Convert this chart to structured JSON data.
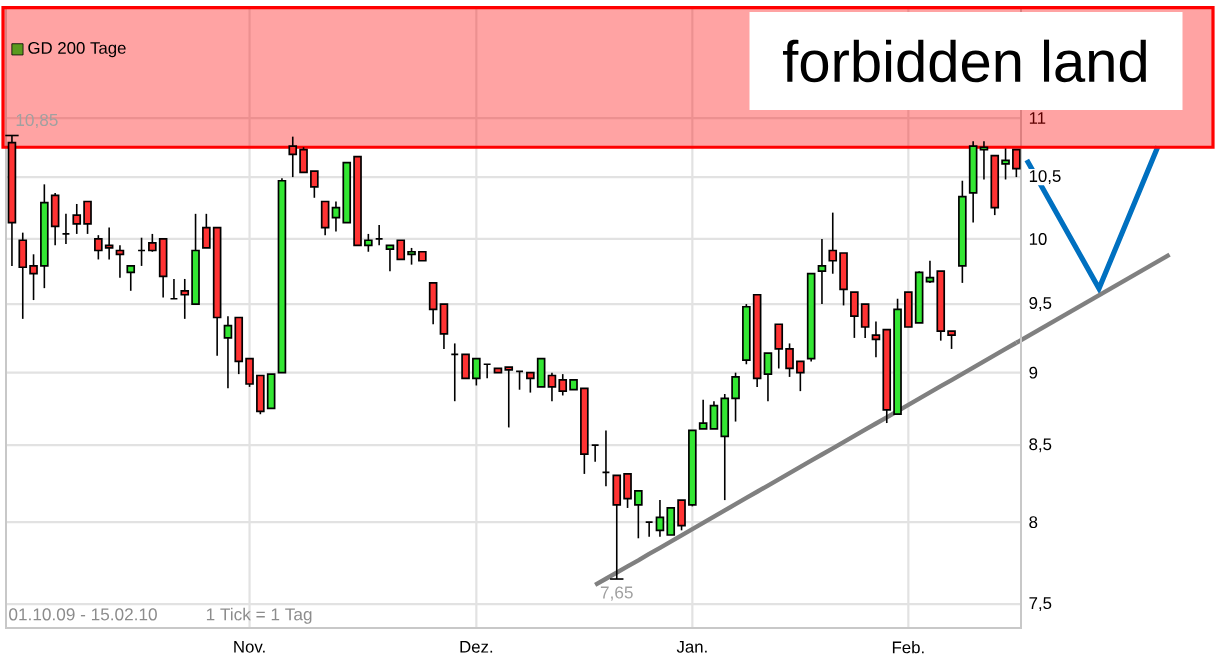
{
  "chart_data": {
    "type": "candlestick",
    "categories": [
      null,
      null,
      null,
      null,
      null,
      null,
      null,
      null,
      null,
      null,
      null,
      null,
      null,
      null,
      null,
      null,
      null,
      null,
      null,
      null,
      null,
      null,
      "Nov.",
      null,
      null,
      null,
      null,
      null,
      null,
      null,
      null,
      null,
      null,
      null,
      null,
      null,
      null,
      null,
      null,
      null,
      null,
      null,
      null,
      "Dez.",
      null,
      null,
      null,
      null,
      null,
      null,
      null,
      null,
      null,
      null,
      null,
      null,
      null,
      null,
      null,
      null,
      null,
      null,
      null,
      "Jan.",
      null,
      null,
      null,
      null,
      null,
      null,
      null,
      null,
      null,
      null,
      null,
      null,
      null,
      null,
      null,
      null,
      null,
      null,
      null,
      "Feb.",
      null,
      null,
      null,
      null,
      null,
      null,
      null,
      null,
      null,
      null
    ],
    "ohlc": [
      [
        10.79,
        10.85,
        9.79,
        10.13
      ],
      [
        9.99,
        10.05,
        9.39,
        9.78
      ],
      [
        9.79,
        9.88,
        9.53,
        9.73
      ],
      [
        9.79,
        10.44,
        9.62,
        10.29
      ],
      [
        10.35,
        10.37,
        9.95,
        10.1
      ],
      [
        10.04,
        10.2,
        9.96,
        10.04
      ],
      [
        10.19,
        10.28,
        10.04,
        10.12
      ],
      [
        10.3,
        10.3,
        10.04,
        10.12
      ],
      [
        10.0,
        10.03,
        9.84,
        9.91
      ],
      [
        9.95,
        10.09,
        9.84,
        9.93
      ],
      [
        9.91,
        9.95,
        9.7,
        9.88
      ],
      [
        9.74,
        9.79,
        9.6,
        9.79
      ],
      [
        9.91,
        10.01,
        9.79,
        9.91
      ],
      [
        9.97,
        10.04,
        9.9,
        9.91
      ],
      [
        10.0,
        10.0,
        9.55,
        9.71
      ],
      [
        9.54,
        9.69,
        9.54,
        9.54
      ],
      [
        9.6,
        9.69,
        9.39,
        9.57
      ],
      [
        9.5,
        10.2,
        9.5,
        9.91
      ],
      [
        10.09,
        10.2,
        9.93,
        9.93
      ],
      [
        10.09,
        10.09,
        9.12,
        9.4
      ],
      [
        9.25,
        9.41,
        8.89,
        9.34
      ],
      [
        9.4,
        9.4,
        8.99,
        9.08
      ],
      [
        9.1,
        9.1,
        8.9,
        8.92
      ],
      [
        8.98,
        8.98,
        8.71,
        8.73
      ],
      [
        8.75,
        8.99,
        8.75,
        8.99
      ],
      [
        9.0,
        10.49,
        9.0,
        10.47
      ],
      [
        10.76,
        10.84,
        10.5,
        10.69
      ],
      [
        10.73,
        10.75,
        10.54,
        10.54
      ],
      [
        10.55,
        10.55,
        10.33,
        10.42
      ],
      [
        10.3,
        10.3,
        10.03,
        10.09
      ],
      [
        10.17,
        10.3,
        10.06,
        10.25
      ],
      [
        10.13,
        10.62,
        10.13,
        10.62
      ],
      [
        10.67,
        10.67,
        9.95,
        9.95
      ],
      [
        9.95,
        10.04,
        9.9,
        9.99
      ],
      [
        10.0,
        10.11,
        9.95,
        10.0
      ],
      [
        9.92,
        9.95,
        9.75,
        9.95
      ],
      [
        9.99,
        9.99,
        9.84,
        9.84
      ],
      [
        9.88,
        9.93,
        9.8,
        9.9
      ],
      [
        9.9,
        9.9,
        9.83,
        9.83
      ],
      [
        9.66,
        9.66,
        9.35,
        9.46
      ],
      [
        9.5,
        9.5,
        9.17,
        9.28
      ],
      [
        9.13,
        9.21,
        8.8,
        9.13
      ],
      [
        9.13,
        9.13,
        8.96,
        8.96
      ],
      [
        8.96,
        9.1,
        8.91,
        9.1
      ],
      [
        9.06,
        9.06,
        8.96,
        9.06
      ],
      [
        9.03,
        9.03,
        9.0,
        9.0
      ],
      [
        9.04,
        9.04,
        8.62,
        9.02
      ],
      [
        9.01,
        9.01,
        8.88,
        9.01
      ],
      [
        9.0,
        9.0,
        8.86,
        8.96
      ],
      [
        8.9,
        9.1,
        8.9,
        9.1
      ],
      [
        8.98,
        9.0,
        8.8,
        8.9
      ],
      [
        8.95,
        8.99,
        8.84,
        8.87
      ],
      [
        8.88,
        8.95,
        8.88,
        8.95
      ],
      [
        8.89,
        8.89,
        8.31,
        8.44
      ],
      [
        8.5,
        8.5,
        8.39,
        8.5
      ],
      [
        8.32,
        8.6,
        8.23,
        8.32
      ],
      [
        8.3,
        8.3,
        7.65,
        8.11
      ],
      [
        8.31,
        8.31,
        8.09,
        8.15
      ],
      [
        8.11,
        8.2,
        7.9,
        8.2
      ],
      [
        8.0,
        8.0,
        7.91,
        8.0
      ],
      [
        7.95,
        8.14,
        7.91,
        8.03
      ],
      [
        7.92,
        8.09,
        7.92,
        8.09
      ],
      [
        8.14,
        8.14,
        7.95,
        7.98
      ],
      [
        8.11,
        8.6,
        8.1,
        8.6
      ],
      [
        8.61,
        8.81,
        8.61,
        8.65
      ],
      [
        8.61,
        8.8,
        8.61,
        8.77
      ],
      [
        8.56,
        8.85,
        8.14,
        8.82
      ],
      [
        8.82,
        9.0,
        8.66,
        8.97
      ],
      [
        9.09,
        9.5,
        9.06,
        9.48
      ],
      [
        9.57,
        9.57,
        8.9,
        8.96
      ],
      [
        8.99,
        9.14,
        8.8,
        9.14
      ],
      [
        9.35,
        9.35,
        9.03,
        9.17
      ],
      [
        9.17,
        9.21,
        8.97,
        9.03
      ],
      [
        9.08,
        9.08,
        8.87,
        9.0
      ],
      [
        9.1,
        9.73,
        9.08,
        9.73
      ],
      [
        9.75,
        10.0,
        9.5,
        9.79
      ],
      [
        9.91,
        10.21,
        9.73,
        9.83
      ],
      [
        9.89,
        9.89,
        9.49,
        9.61
      ],
      [
        9.59,
        9.59,
        9.25,
        9.41
      ],
      [
        9.5,
        9.5,
        9.25,
        9.33
      ],
      [
        9.27,
        9.37,
        9.11,
        9.24
      ],
      [
        9.31,
        9.31,
        8.65,
        8.74
      ],
      [
        8.71,
        9.54,
        8.71,
        9.46
      ],
      [
        9.59,
        9.59,
        9.33,
        9.33
      ],
      [
        9.36,
        9.75,
        9.36,
        9.74
      ],
      [
        9.67,
        9.83,
        9.66,
        9.7
      ],
      [
        9.75,
        9.75,
        9.23,
        9.3
      ],
      [
        9.3,
        9.3,
        9.17,
        9.27
      ],
      [
        9.79,
        10.47,
        9.66,
        10.34
      ],
      [
        10.37,
        10.8,
        10.13,
        10.76
      ],
      [
        10.73,
        10.8,
        10.48,
        10.75
      ],
      [
        10.68,
        10.68,
        10.19,
        10.25
      ],
      [
        10.61,
        10.74,
        10.48,
        10.64
      ],
      [
        10.73,
        10.73,
        10.5,
        10.57
      ]
    ],
    "colors": [
      "#ff3333",
      "#ff3333",
      "#ff3333",
      "#33e633",
      "#ff3333",
      "#000000",
      "#ff3333",
      "#ff3333",
      "#ff3333",
      "#ff3333",
      "#ff3333",
      "#33e633",
      "#000000",
      "#ff3333",
      "#ff3333",
      "#000000",
      "#ff3333",
      "#33e633",
      "#ff3333",
      "#ff3333",
      "#33e633",
      "#ff3333",
      "#ff3333",
      "#ff3333",
      "#33e633",
      "#33e633",
      "#ff3333",
      "#ff3333",
      "#ff3333",
      "#ff3333",
      "#33e633",
      "#33e633",
      "#ff3333",
      "#33e633",
      "#000000",
      "#33e633",
      "#ff3333",
      "#33e633",
      "#ff3333",
      "#ff3333",
      "#ff3333",
      "#000000",
      "#ff3333",
      "#33e633",
      "#000000",
      "#ff3333",
      "#ff3333",
      "#000000",
      "#ff3333",
      "#33e633",
      "#ff3333",
      "#ff3333",
      "#33e633",
      "#ff3333",
      "#000000",
      "#000000",
      "#ff3333",
      "#ff3333",
      "#33e633",
      "#000000",
      "#33e633",
      "#33e633",
      "#ff3333",
      "#33e633",
      "#33e633",
      "#33e633",
      "#33e633",
      "#33e633",
      "#33e633",
      "#ff3333",
      "#33e633",
      "#ff3333",
      "#ff3333",
      "#ff3333",
      "#33e633",
      "#33e633",
      "#ff3333",
      "#ff3333",
      "#ff3333",
      "#ff3333",
      "#ff3333",
      "#ff3333",
      "#33e633",
      "#ff3333",
      "#33e633",
      "#33e633",
      "#ff3333",
      "#ff3333",
      "#33e633",
      "#33e633",
      "#33e633",
      "#ff3333",
      "#33e633",
      "#ff3333"
    ],
    "series": [
      {
        "name": "GD 200 Tage",
        "type": "line",
        "color": "#5a9a1e",
        "values": [
          null,
          null,
          null,
          null,
          null,
          null,
          null,
          null,
          null,
          null,
          null,
          null,
          null,
          null,
          null,
          null,
          null,
          null,
          null,
          null,
          null,
          null,
          null,
          null,
          null,
          null,
          null,
          null,
          null,
          null,
          null,
          null,
          null,
          null,
          null,
          null,
          null,
          null,
          null,
          null,
          null,
          null,
          null,
          null,
          null,
          null,
          null,
          null,
          null,
          null,
          null,
          null,
          null,
          null,
          null,
          null,
          null,
          null,
          null,
          null,
          null,
          null,
          null,
          null,
          null,
          null,
          null,
          null,
          null,
          null,
          null,
          null,
          null,
          null,
          null,
          null,
          null,
          null,
          null,
          null,
          null,
          null,
          null,
          null,
          null,
          null,
          null,
          null,
          null,
          null,
          null,
          null,
          null,
          null
        ]
      },
      {
        "type": "line",
        "color": "#808080",
        "values": [
          null,
          null,
          null,
          null,
          null,
          null,
          null,
          null,
          null,
          null,
          null,
          null,
          null,
          null,
          null,
          null,
          null,
          null,
          null,
          null,
          null,
          null,
          null,
          null,
          null,
          null,
          null,
          null,
          null,
          null,
          null,
          null,
          null,
          null,
          null,
          null,
          null,
          null,
          null,
          null,
          null,
          null,
          null,
          null,
          null,
          null,
          null,
          null,
          null,
          null,
          null,
          null,
          null,
          null,
          7.614,
          7.651,
          7.689,
          7.727,
          7.764,
          7.803,
          7.841,
          7.879,
          7.918,
          7.957,
          7.996,
          8.035,
          8.074,
          8.114,
          8.154,
          8.194,
          8.234,
          8.274,
          8.315,
          8.356,
          8.397,
          8.438,
          8.479,
          8.521,
          8.563,
          8.605,
          8.647,
          8.689,
          8.732,
          8.775,
          8.818,
          8.861,
          8.905,
          8.948,
          8.992,
          9.036,
          9.081,
          9.125,
          9.17,
          9.215
        ]
      }
    ],
    "ylim": [
      7.36,
      12.0
    ],
    "yticks": [
      {
        "value": 7.5,
        "label": "7,5"
      },
      8,
      {
        "value": 8.5,
        "label": "8,5"
      },
      9,
      {
        "value": 9.5,
        "label": "9,5"
      },
      10,
      {
        "value": 10.5,
        "label": "10,5"
      },
      11
    ],
    "log": "y",
    "grid": true,
    "legend": "top left",
    "bands": [
      {
        "axis": "y",
        "from": 10.75,
        "to": 12.0,
        "label": "forbidden land",
        "color": "#ff0000"
      }
    ],
    "annotations": [
      "10,85",
      "7,65",
      "01.10.09 - 15.02.10",
      "1 Tick = 1 Tag"
    ]
  }
}
